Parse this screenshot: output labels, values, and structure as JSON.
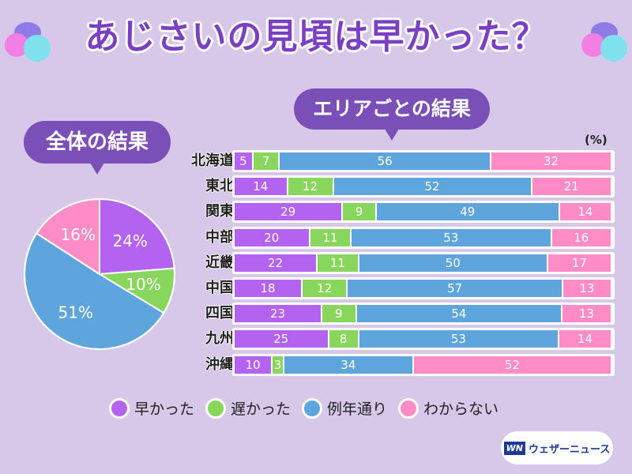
{
  "title": "あじさいの見頃は早かった？",
  "overall_bubble": "全体の結果",
  "area_bubble": "エリアごとの結果",
  "unit_label": "(%)",
  "colors": {
    "early": "#b462f0",
    "late": "#88d65c",
    "normal": "#5ea5de",
    "unknown": "#ff8cc6"
  },
  "legend": [
    {
      "key": "early",
      "label": "早かった"
    },
    {
      "key": "late",
      "label": "遅かった"
    },
    {
      "key": "normal",
      "label": "例年通り"
    },
    {
      "key": "unknown",
      "label": "わからない"
    }
  ],
  "logo": {
    "mark": "WN",
    "text": "ウェザーニュース"
  },
  "chart_data": [
    {
      "type": "pie",
      "title": "全体の結果",
      "categories": [
        "早かった",
        "遅かった",
        "例年通り",
        "わからない"
      ],
      "values": [
        24,
        10,
        51,
        16
      ],
      "labels": [
        "24%",
        "10%",
        "51%",
        "16%"
      ]
    },
    {
      "type": "bar",
      "stacked": true,
      "orientation": "horizontal",
      "title": "エリアごとの結果",
      "unit": "%",
      "categories": [
        "北海道",
        "東北",
        "関東",
        "中部",
        "近畿",
        "中国",
        "四国",
        "九州",
        "沖縄"
      ],
      "series": [
        {
          "name": "早かった",
          "key": "early",
          "values": [
            5,
            14,
            29,
            20,
            22,
            18,
            23,
            25,
            10
          ]
        },
        {
          "name": "遅かった",
          "key": "late",
          "values": [
            7,
            12,
            9,
            11,
            11,
            12,
            9,
            8,
            3
          ]
        },
        {
          "name": "例年通り",
          "key": "normal",
          "values": [
            56,
            52,
            49,
            53,
            50,
            57,
            54,
            53,
            34
          ]
        },
        {
          "name": "わからない",
          "key": "unknown",
          "values": [
            32,
            21,
            14,
            16,
            17,
            13,
            13,
            14,
            52
          ]
        }
      ]
    }
  ]
}
